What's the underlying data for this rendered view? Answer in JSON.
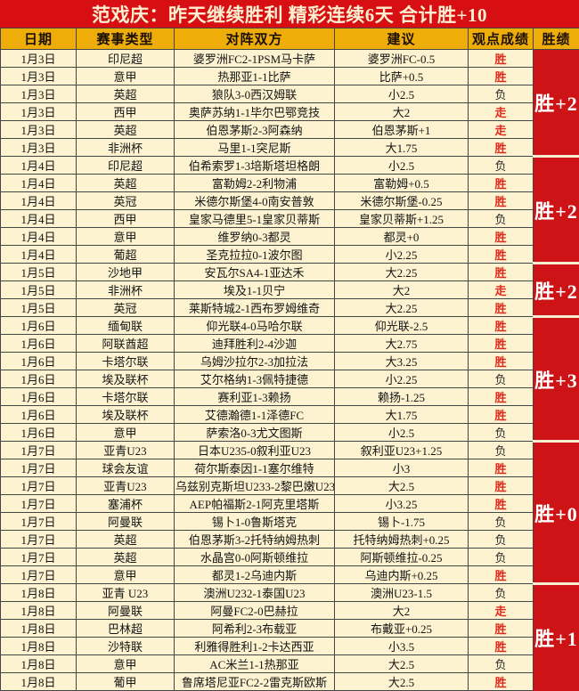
{
  "title": "范戏庆：昨天继续胜利  精彩连续6天  合计胜+10",
  "columns": [
    "日期",
    "赛事类型",
    "对阵双方",
    "建议",
    "观点成绩",
    "胜绩"
  ],
  "lose_result": "负",
  "colors": {
    "title_bg": "#d80f12",
    "title_text": "#fdf0d2",
    "header_bg": "#efad0a",
    "row_bg": "#fdf3d0",
    "border": "#454545",
    "result_win": "#e02a1e",
    "result_lose": "#2b2b2b",
    "streak_bg": "#cd1315",
    "streak_text": "#ffffff"
  },
  "rows": [
    {
      "date": "1月3日",
      "league": "印尼超",
      "match": "婆罗洲FC2-1PSM马卡萨",
      "tip": "婆罗洲FC-0.5",
      "result": "胜"
    },
    {
      "date": "1月3日",
      "league": "意甲",
      "match": "热那亚1-1比萨",
      "tip": "比萨+0.5",
      "result": "胜"
    },
    {
      "date": "1月3日",
      "league": "英超",
      "match": "狼队3-0西汉姆联",
      "tip": "小2.5",
      "result": "负"
    },
    {
      "date": "1月3日",
      "league": "西甲",
      "match": "奥萨苏纳1-1毕尔巴鄂竞技",
      "tip": "大2",
      "result": "走"
    },
    {
      "date": "1月3日",
      "league": "英超",
      "match": "伯恩茅斯2-3阿森纳",
      "tip": "伯恩茅斯+1",
      "result": "走"
    },
    {
      "date": "1月3日",
      "league": "非洲杯",
      "match": "马里1-1突尼斯",
      "tip": "大1.75",
      "result": "胜"
    },
    {
      "date": "1月4日",
      "league": "印尼超",
      "match": "伯希索罗1-3培斯塔坦格朗",
      "tip": "小2.5",
      "result": "负"
    },
    {
      "date": "1月4日",
      "league": "英超",
      "match": "富勒姆2-2利物浦",
      "tip": "富勒姆+0.5",
      "result": "胜"
    },
    {
      "date": "1月4日",
      "league": "英冠",
      "match": "米德尔斯堡4-0南安普敦",
      "tip": "米德尔斯堡-0.25",
      "result": "胜"
    },
    {
      "date": "1月4日",
      "league": "西甲",
      "match": "皇家马德里5-1皇家贝蒂斯",
      "tip": "皇家贝蒂斯+1.25",
      "result": "负"
    },
    {
      "date": "1月4日",
      "league": "意甲",
      "match": "维罗纳0-3都灵",
      "tip": "都灵+0",
      "result": "胜"
    },
    {
      "date": "1月4日",
      "league": "葡超",
      "match": "圣克拉拉0-1波尔图",
      "tip": "小2.25",
      "result": "胜"
    },
    {
      "date": "1月5日",
      "league": "沙地甲",
      "match": "安瓦尔SA4-1亚达禾",
      "tip": "大2.25",
      "result": "胜"
    },
    {
      "date": "1月5日",
      "league": "非洲杯",
      "match": "埃及1-1贝宁",
      "tip": "大2",
      "result": "走"
    },
    {
      "date": "1月5日",
      "league": "英冠",
      "match": "莱斯特城2-1西布罗姆维奇",
      "tip": "大2.25",
      "result": "胜"
    },
    {
      "date": "1月6日",
      "league": "缅甸联",
      "match": "仰光联4-0马哈尔联",
      "tip": "仰光联-2.5",
      "result": "胜"
    },
    {
      "date": "1月6日",
      "league": "阿联酋超",
      "match": "迪拜胜利2-4沙迦",
      "tip": "大2.75",
      "result": "胜"
    },
    {
      "date": "1月6日",
      "league": "卡塔尔联",
      "match": "乌姆沙拉尔2-3加拉法",
      "tip": "大3.25",
      "result": "胜"
    },
    {
      "date": "1月6日",
      "league": "埃及联杯",
      "match": "艾尔格纳1-3佩特捷德",
      "tip": "小2.25",
      "result": "负"
    },
    {
      "date": "1月6日",
      "league": "卡塔尔联",
      "match": "赛利亚1-3赖扬",
      "tip": "赖扬-1.25",
      "result": "胜"
    },
    {
      "date": "1月6日",
      "league": "埃及联杯",
      "match": "艾德瀚德1-1泽德FC",
      "tip": "大1.75",
      "result": "胜"
    },
    {
      "date": "1月6日",
      "league": "意甲",
      "match": "萨索洛0-3尤文图斯",
      "tip": "小2.5",
      "result": "负"
    },
    {
      "date": "1月7日",
      "league": "亚青U23",
      "match": "日本U235-0叙利亚U23",
      "tip": "叙利亚U23+1.25",
      "result": "负"
    },
    {
      "date": "1月7日",
      "league": "球会友谊",
      "match": "荷尔斯泰因1-1塞尔维特",
      "tip": "小3",
      "result": "胜"
    },
    {
      "date": "1月7日",
      "league": "亚青U23",
      "match": "乌兹别克斯坦U233-2黎巴嫩U23",
      "tip": "大2.5",
      "result": "胜"
    },
    {
      "date": "1月7日",
      "league": "塞浦杯",
      "match": "AEP帕福斯2-1阿克里塔斯",
      "tip": "小3.25",
      "result": "胜"
    },
    {
      "date": "1月7日",
      "league": "阿曼联",
      "match": "锡卜1-0鲁斯塔克",
      "tip": "锡卜-1.75",
      "result": "负"
    },
    {
      "date": "1月7日",
      "league": "英超",
      "match": "伯恩茅斯3-2托特纳姆热刺",
      "tip": "托特纳姆热刺+0.25",
      "result": "负"
    },
    {
      "date": "1月7日",
      "league": "英超",
      "match": "水晶宫0-0阿斯顿维拉",
      "tip": "阿斯顿维拉-0.25",
      "result": "负"
    },
    {
      "date": "1月7日",
      "league": "意甲",
      "match": "都灵1-2乌迪内斯",
      "tip": "乌迪内斯+0.25",
      "result": "胜"
    },
    {
      "date": "1月8日",
      "league": "亚青 U23",
      "match": "澳洲U232-1泰国U23",
      "tip": "澳洲U23-1.5",
      "result": "负"
    },
    {
      "date": "1月8日",
      "league": "阿曼联",
      "match": "阿曼FC2-0巴赫拉",
      "tip": "大2",
      "result": "走"
    },
    {
      "date": "1月8日",
      "league": "巴林超",
      "match": "阿希利2-3布载亚",
      "tip": "布戴亚+0.25",
      "result": "胜"
    },
    {
      "date": "1月8日",
      "league": "沙特联",
      "match": "利雅得胜利1-2卡达西亚",
      "tip": "小3.5",
      "result": "胜"
    },
    {
      "date": "1月8日",
      "league": "意甲",
      "match": "AC米兰1-1热那亚",
      "tip": "大2.5",
      "result": "负"
    },
    {
      "date": "1月8日",
      "league": "葡甲",
      "match": "鲁席塔尼亚FC2-2雷克斯欧斯",
      "tip": "大2.5",
      "result": "胜"
    }
  ],
  "groups": [
    {
      "label": "胜+2",
      "start": 0,
      "count": 6
    },
    {
      "label": "胜+2",
      "start": 6,
      "count": 6
    },
    {
      "label": "胜+2",
      "start": 12,
      "count": 3
    },
    {
      "label": "胜+3",
      "start": 15,
      "count": 7
    },
    {
      "label": "胜+0",
      "start": 22,
      "count": 8
    },
    {
      "label": "胜+1",
      "start": 30,
      "count": 6
    }
  ]
}
